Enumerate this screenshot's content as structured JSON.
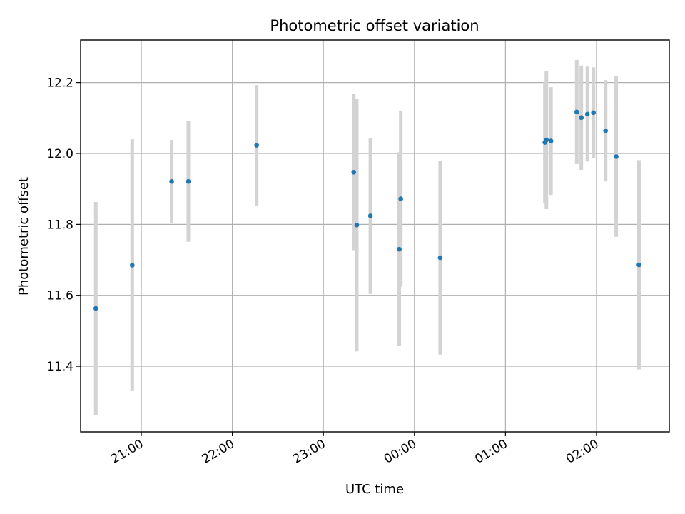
{
  "chart_data": {
    "type": "scatter",
    "title": "Photometric offset variation",
    "xlabel": "UTC time",
    "ylabel": "Photometric offset",
    "x_axis_type": "time",
    "xlim": [
      "20:20",
      "02:48"
    ],
    "ylim": [
      11.215,
      12.32
    ],
    "x_ticks": [
      "21:00",
      "22:00",
      "23:00",
      "00:00",
      "01:00",
      "02:00"
    ],
    "y_ticks": [
      11.4,
      11.6,
      11.8,
      12.0,
      12.2
    ],
    "y_tick_labels": [
      "11.4",
      "11.6",
      "11.8",
      "12.0",
      "12.2"
    ],
    "grid": true,
    "x_tick_rotation": "30",
    "point_color": "#1f77b4",
    "errorbar_color": "#d3d3d3",
    "points": [
      {
        "x": "20:30",
        "y": 11.563,
        "err": 0.3
      },
      {
        "x": "20:54",
        "y": 11.685,
        "err": 0.355
      },
      {
        "x": "21:20",
        "y": 11.921,
        "err": 0.117
      },
      {
        "x": "21:31",
        "y": 11.921,
        "err": 0.17
      },
      {
        "x": "22:16",
        "y": 12.023,
        "err": 0.17
      },
      {
        "x": "23:20",
        "y": 11.947,
        "err": 0.22
      },
      {
        "x": "23:22",
        "y": 11.798,
        "err": 0.356
      },
      {
        "x": "23:31",
        "y": 11.824,
        "err": 0.22
      },
      {
        "x": "23:50",
        "y": 11.73,
        "err": 0.273
      },
      {
        "x": "23:51",
        "y": 11.872,
        "err": 0.248
      },
      {
        "x": "00:17",
        "y": 11.706,
        "err": 0.273
      },
      {
        "x": "01:26",
        "y": 12.031,
        "err": 0.17
      },
      {
        "x": "01:27",
        "y": 12.038,
        "err": 0.195
      },
      {
        "x": "01:30",
        "y": 12.035,
        "err": 0.152
      },
      {
        "x": "01:47",
        "y": 12.117,
        "err": 0.147
      },
      {
        "x": "01:50",
        "y": 12.101,
        "err": 0.147
      },
      {
        "x": "01:54",
        "y": 12.111,
        "err": 0.134
      },
      {
        "x": "01:58",
        "y": 12.115,
        "err": 0.128
      },
      {
        "x": "02:06",
        "y": 12.064,
        "err": 0.143
      },
      {
        "x": "02:13",
        "y": 11.991,
        "err": 0.226
      },
      {
        "x": "02:28",
        "y": 11.686,
        "err": 0.295
      }
    ]
  }
}
